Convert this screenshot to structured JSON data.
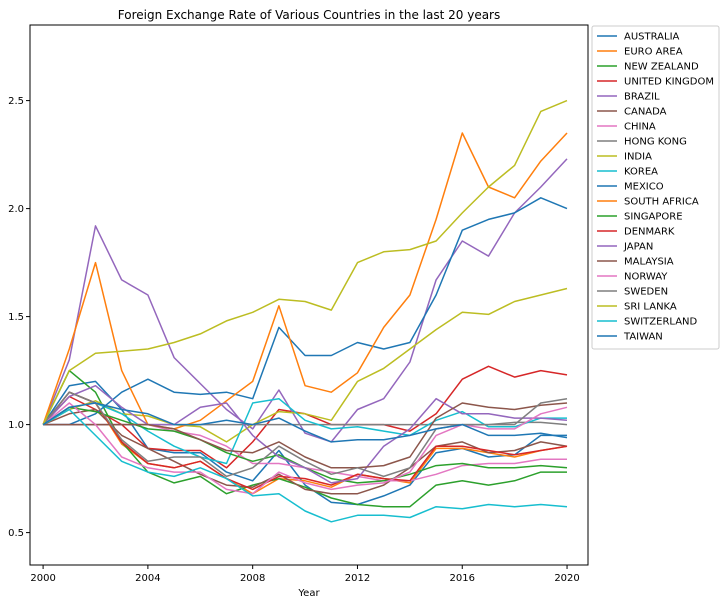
{
  "chart_data": {
    "type": "line",
    "title": "Foreign Exchange Rate of Various Countries in the last 20 years",
    "xlabel": "Year",
    "ylabel": "",
    "xlim": [
      1999.5,
      2020.8
    ],
    "ylim": [
      0.35,
      2.85
    ],
    "xticks": [
      2000,
      2004,
      2008,
      2012,
      2016,
      2020
    ],
    "yticks": [
      0.5,
      1.0,
      1.5,
      2.0,
      2.5
    ],
    "grid": false,
    "legend_position": "outside upper right",
    "x": [
      2000,
      2001,
      2002,
      2003,
      2004,
      2005,
      2006,
      2007,
      2008,
      2009,
      2010,
      2011,
      2012,
      2013,
      2014,
      2015,
      2016,
      2017,
      2018,
      2019,
      2020
    ],
    "series": [
      {
        "name": "AUSTRALIA",
        "color": "#1f77b4",
        "values": [
          1.0,
          1.18,
          1.2,
          1.07,
          0.89,
          0.87,
          0.87,
          0.78,
          0.74,
          0.88,
          0.72,
          0.64,
          0.63,
          0.67,
          0.72,
          0.87,
          0.89,
          0.85,
          0.86,
          0.95,
          0.95
        ]
      },
      {
        "name": "EURO AREA",
        "color": "#ff7f0e",
        "values": [
          1.0,
          1.15,
          1.1,
          0.91,
          0.82,
          0.8,
          0.83,
          0.75,
          0.68,
          0.75,
          0.74,
          0.71,
          0.77,
          0.75,
          0.73,
          0.89,
          0.89,
          0.87,
          0.85,
          0.88,
          0.9
        ]
      },
      {
        "name": "NEW ZEALAND",
        "color": "#2ca02c",
        "values": [
          1.0,
          1.25,
          1.15,
          0.92,
          0.78,
          0.73,
          0.76,
          0.68,
          0.72,
          0.75,
          0.71,
          0.66,
          0.63,
          0.62,
          0.62,
          0.72,
          0.74,
          0.72,
          0.74,
          0.78,
          0.78
        ]
      },
      {
        "name": "UNITED KINGDOM",
        "color": "#d62728",
        "values": [
          1.0,
          1.13,
          1.07,
          1.0,
          0.89,
          0.88,
          0.88,
          0.8,
          0.92,
          1.07,
          1.05,
          1.0,
          1.0,
          1.0,
          0.97,
          1.05,
          1.21,
          1.27,
          1.22,
          1.25,
          1.23
        ]
      },
      {
        "name": "BRAZIL",
        "color": "#9467bd",
        "values": [
          1.0,
          1.3,
          1.92,
          1.67,
          1.6,
          1.31,
          1.19,
          1.07,
          0.98,
          1.16,
          0.96,
          0.92,
          1.07,
          1.12,
          1.29,
          1.67,
          1.85,
          1.78,
          1.98,
          2.1,
          2.23
        ]
      },
      {
        "name": "CANADA",
        "color": "#8c564b",
        "values": [
          1.0,
          1.05,
          1.07,
          0.95,
          0.89,
          0.83,
          0.77,
          0.72,
          0.71,
          0.77,
          0.7,
          0.68,
          0.68,
          0.72,
          0.8,
          0.9,
          0.92,
          0.87,
          0.88,
          0.92,
          0.9
        ]
      },
      {
        "name": "CHINA",
        "color": "#e377c2",
        "values": [
          1.0,
          1.0,
          1.0,
          1.0,
          1.0,
          0.97,
          0.95,
          0.9,
          0.82,
          0.82,
          0.8,
          0.78,
          0.76,
          0.74,
          0.74,
          0.77,
          0.81,
          0.82,
          0.82,
          0.84,
          0.84
        ]
      },
      {
        "name": "HONG KONG",
        "color": "#7f7f7f",
        "values": [
          1.0,
          1.0,
          1.0,
          1.0,
          1.0,
          1.0,
          1.0,
          1.0,
          1.0,
          1.0,
          1.0,
          1.0,
          1.0,
          1.0,
          1.0,
          1.0,
          1.0,
          1.0,
          1.01,
          1.01,
          1.0
        ]
      },
      {
        "name": "INDIA",
        "color": "#bcbd22",
        "values": [
          1.0,
          1.07,
          1.11,
          1.05,
          1.04,
          1.0,
          0.99,
          0.92,
          1.0,
          1.06,
          1.05,
          1.02,
          1.2,
          1.26,
          1.35,
          1.44,
          1.52,
          1.51,
          1.57,
          1.6,
          1.63
        ]
      },
      {
        "name": "KOREA",
        "color": "#17becf",
        "values": [
          1.0,
          1.15,
          1.1,
          1.05,
          0.97,
          0.9,
          0.85,
          0.82,
          1.1,
          1.12,
          1.02,
          0.98,
          0.99,
          0.97,
          0.95,
          1.02,
          1.06,
          0.99,
          0.99,
          1.03,
          1.03
        ]
      },
      {
        "name": "MEXICO",
        "color": "#1f77b4",
        "values": [
          1.0,
          1.0,
          1.05,
          1.15,
          1.21,
          1.15,
          1.14,
          1.15,
          1.12,
          1.45,
          1.32,
          1.32,
          1.38,
          1.35,
          1.38,
          1.6,
          1.9,
          1.95,
          1.98,
          2.05,
          2.0
        ]
      },
      {
        "name": "SOUTH AFRICA",
        "color": "#ff7f0e",
        "values": [
          1.0,
          1.35,
          1.75,
          1.25,
          1.0,
          0.98,
          1.02,
          1.11,
          1.2,
          1.55,
          1.18,
          1.15,
          1.24,
          1.45,
          1.6,
          1.95,
          2.35,
          2.1,
          2.05,
          2.22,
          2.35
        ]
      },
      {
        "name": "SINGAPORE",
        "color": "#2ca02c",
        "values": [
          1.0,
          1.08,
          1.06,
          1.02,
          0.98,
          0.97,
          0.93,
          0.87,
          0.83,
          0.86,
          0.8,
          0.75,
          0.73,
          0.74,
          0.77,
          0.81,
          0.82,
          0.8,
          0.8,
          0.81,
          0.8
        ]
      },
      {
        "name": "DENMARK",
        "color": "#d62728",
        "values": [
          1.0,
          1.15,
          1.1,
          0.92,
          0.82,
          0.8,
          0.83,
          0.75,
          0.7,
          0.76,
          0.75,
          0.72,
          0.77,
          0.75,
          0.74,
          0.9,
          0.9,
          0.88,
          0.86,
          0.88,
          0.9
        ]
      },
      {
        "name": "JAPAN",
        "color": "#9467bd",
        "values": [
          1.0,
          1.13,
          1.18,
          1.08,
          1.0,
          1.0,
          1.08,
          1.1,
          0.95,
          0.85,
          0.8,
          0.73,
          0.75,
          0.9,
          0.98,
          1.12,
          1.05,
          1.05,
          1.03,
          1.03,
          1.02
        ]
      },
      {
        "name": "MALAYSIA",
        "color": "#8c564b",
        "values": [
          1.0,
          1.0,
          1.0,
          1.0,
          1.0,
          0.98,
          0.93,
          0.88,
          0.87,
          0.92,
          0.85,
          0.8,
          0.8,
          0.81,
          0.85,
          1.03,
          1.1,
          1.08,
          1.07,
          1.09,
          1.1
        ]
      },
      {
        "name": "NORWAY",
        "color": "#e377c2",
        "values": [
          1.0,
          1.1,
          1.0,
          0.85,
          0.8,
          0.78,
          0.78,
          0.7,
          0.68,
          0.78,
          0.73,
          0.7,
          0.72,
          0.73,
          0.78,
          0.95,
          1.0,
          0.98,
          0.98,
          1.05,
          1.08
        ]
      },
      {
        "name": "SWEDEN",
        "color": "#7f7f7f",
        "values": [
          1.0,
          1.15,
          1.1,
          0.93,
          0.83,
          0.85,
          0.85,
          0.76,
          0.8,
          0.9,
          0.83,
          0.77,
          0.8,
          0.76,
          0.8,
          0.98,
          1.0,
          1.0,
          1.0,
          1.1,
          1.12
        ]
      },
      {
        "name": "SRI LANKA",
        "color": "#bcbd22",
        "values": [
          1.0,
          1.25,
          1.33,
          1.34,
          1.35,
          1.38,
          1.42,
          1.48,
          1.52,
          1.58,
          1.57,
          1.53,
          1.75,
          1.8,
          1.81,
          1.85,
          1.98,
          2.1,
          2.2,
          2.45,
          2.5
        ]
      },
      {
        "name": "SWITZERLAND",
        "color": "#17becf",
        "values": [
          1.0,
          1.07,
          0.95,
          0.83,
          0.78,
          0.76,
          0.8,
          0.75,
          0.67,
          0.68,
          0.6,
          0.55,
          0.58,
          0.58,
          0.57,
          0.62,
          0.61,
          0.63,
          0.62,
          0.63,
          0.62
        ]
      },
      {
        "name": "TAIWAN",
        "color": "#1f77b4",
        "values": [
          1.0,
          1.08,
          1.1,
          1.07,
          1.05,
          1.0,
          1.0,
          1.02,
          1.0,
          1.03,
          0.97,
          0.92,
          0.93,
          0.93,
          0.95,
          0.98,
          1.0,
          0.95,
          0.95,
          0.96,
          0.94
        ]
      }
    ]
  }
}
